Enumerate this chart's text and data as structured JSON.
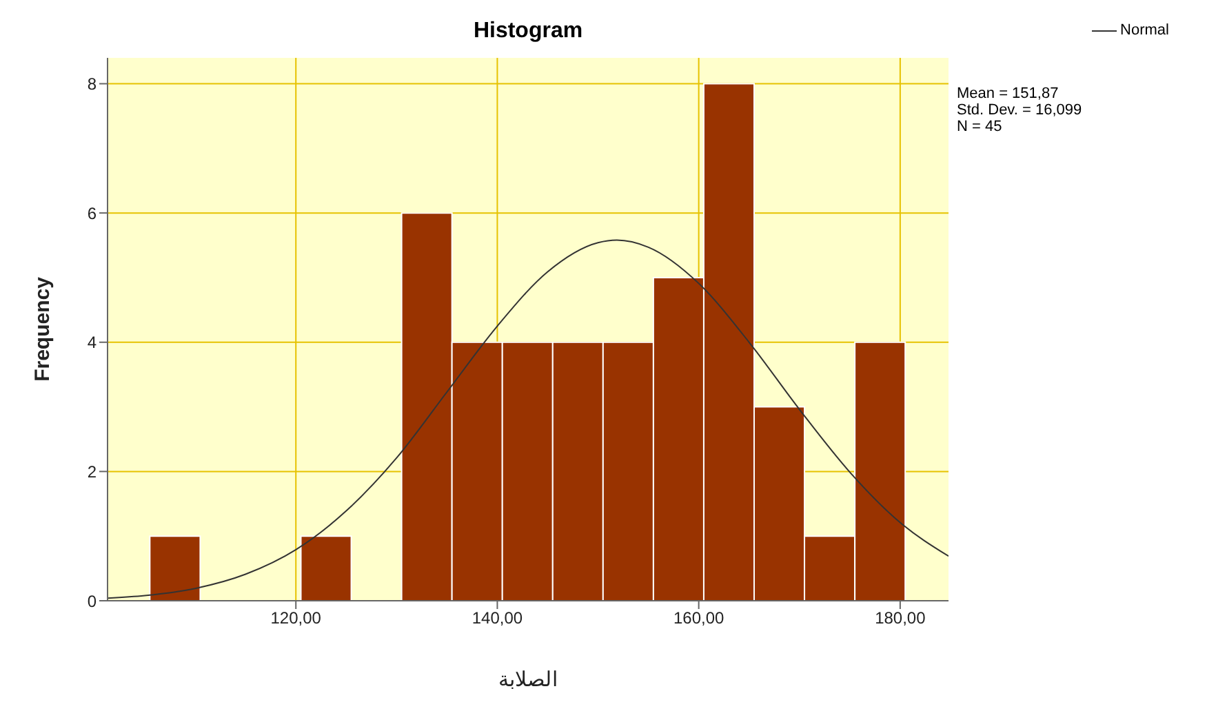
{
  "chart_data": {
    "type": "histogram",
    "title": "Histogram",
    "xlabel": "الصلابة",
    "ylabel": "Frequency",
    "bins": [
      105.5,
      110.5,
      115.5,
      120.5,
      125.5,
      130.5,
      135.5,
      140.5,
      145.5,
      150.5,
      155.5,
      160.5,
      165.5,
      170.5,
      175.5,
      180.5
    ],
    "values": [
      1,
      0,
      0,
      1,
      0,
      6,
      4,
      4,
      4,
      4,
      5,
      8,
      3,
      1,
      4
    ],
    "color": "#993300",
    "series": [
      {
        "name": "Normal",
        "type": "line",
        "color": "#333333",
        "x": [
          101.3,
          105,
          110,
          115,
          120,
          125,
          130,
          135,
          140,
          145,
          150,
          151.87,
          155,
          160,
          165,
          170,
          175,
          180,
          184.8
        ],
        "values": [
          0.04,
          0.08,
          0.19,
          0.41,
          0.79,
          1.39,
          2.21,
          3.23,
          4.25,
          5.09,
          5.54,
          5.58,
          5.47,
          4.91,
          4.0,
          2.96,
          1.99,
          1.21,
          0.69
        ]
      }
    ],
    "annotations": [
      "Mean = 151,87",
      "Std. Dev. = 16,099",
      "N = 45"
    ],
    "xlim": [
      101.3,
      184.8
    ],
    "xticks": [
      {
        "value": 120,
        "label": "120,00"
      },
      {
        "value": 140,
        "label": "140,00"
      },
      {
        "value": 160,
        "label": "160,00"
      },
      {
        "value": 180,
        "label": "180,00"
      }
    ],
    "ylim": [
      0,
      8.4
    ],
    "yticks": [
      0,
      2,
      4,
      6,
      8
    ],
    "grid": true,
    "legend": "top right",
    "marker": "none"
  }
}
